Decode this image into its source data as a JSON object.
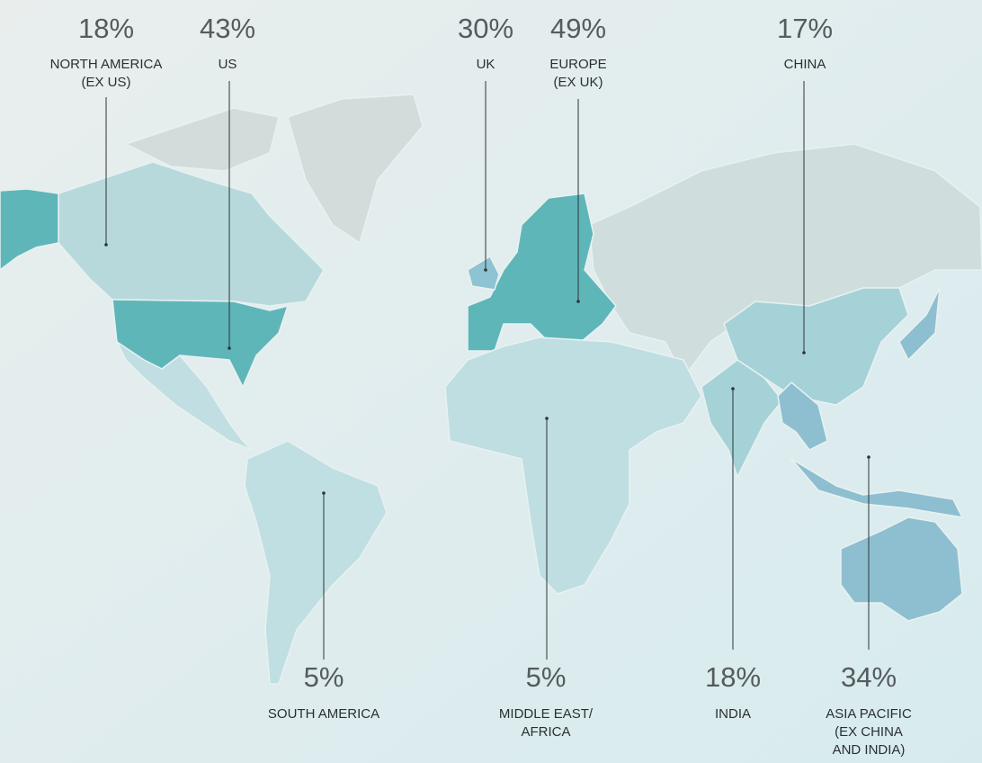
{
  "regions": [
    {
      "percent": "18%",
      "label": [
        "NORTH AMERICA",
        "(EX US)"
      ]
    },
    {
      "percent": "43%",
      "label": [
        "US"
      ]
    },
    {
      "percent": "30%",
      "label": [
        "UK"
      ]
    },
    {
      "percent": "49%",
      "label": [
        "EUROPE",
        "(EX UK)"
      ]
    },
    {
      "percent": "17%",
      "label": [
        "CHINA"
      ]
    },
    {
      "percent": "5%",
      "label": [
        "SOUTH AMERICA"
      ]
    },
    {
      "percent": "5%",
      "label": [
        "MIDDLE EAST/",
        "AFRICA"
      ]
    },
    {
      "percent": "18%",
      "label": [
        "INDIA"
      ]
    },
    {
      "percent": "34%",
      "label": [
        "ASIA PACIFIC",
        "(EX CHINA",
        "AND INDIA)"
      ]
    }
  ]
}
